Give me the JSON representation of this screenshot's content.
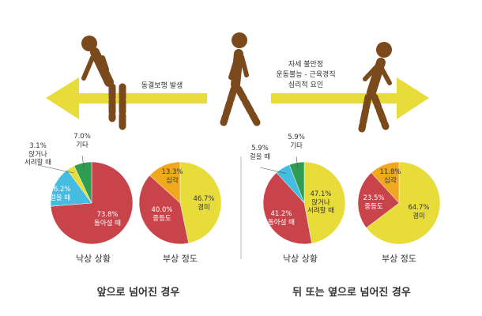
{
  "header": {
    "left_label": "동결보행 발생",
    "right_labels": [
      "자세 불안정",
      "운동불능 - 근육경직",
      "심리적 요인"
    ]
  },
  "colors": {
    "arrow": "#e8dc3a",
    "figure": "#7a4a1c",
    "red": "#c9444a",
    "blue": "#44bde0",
    "green": "#2e9d52",
    "yellow": "#e8dc3a",
    "orange": "#f0a81e",
    "divider": "#bbbbbb"
  },
  "icons": [
    "person-bent-forward-icon",
    "person-walking-icon",
    "person-leaning-back-icon",
    "arrow-left-icon",
    "arrow-right-icon"
  ],
  "sections": {
    "left_title": "앞으로 넘어진 경우",
    "right_title": "뒤 또는 옆으로 넘어진 경우"
  },
  "chart_data": [
    {
      "type": "pie",
      "title": "낙상 상황",
      "group": "앞으로 넘어진 경우",
      "slices": [
        {
          "pct": "73.8",
          "label": "돌아설 때",
          "value": 73.8,
          "color": "#c9444a"
        },
        {
          "pct": "16.2",
          "label": "걸을 때",
          "value": 16.2,
          "color": "#44bde0"
        },
        {
          "pct": "3.1",
          "label": "앉거나 서려할 때",
          "value": 3.1,
          "color": "#e8dc3a"
        },
        {
          "pct": "7.0",
          "label": "기타",
          "value": 7.0,
          "color": "#2e9d52"
        }
      ]
    },
    {
      "type": "pie",
      "title": "부상 정도",
      "group": "앞으로 넘어진 경우",
      "slices": [
        {
          "pct": "46.7",
          "label": "경미",
          "value": 46.7,
          "color": "#e8dc3a"
        },
        {
          "pct": "40.0",
          "label": "중등도",
          "value": 40.0,
          "color": "#c9444a"
        },
        {
          "pct": "13.3",
          "label": "심각",
          "value": 13.3,
          "color": "#f0a81e"
        }
      ]
    },
    {
      "type": "pie",
      "title": "낙상 상황",
      "group": "뒤 또는 옆으로 넘어진 경우",
      "slices": [
        {
          "pct": "47.1",
          "label": "앉거나 서려할 때",
          "value": 47.1,
          "color": "#e8dc3a"
        },
        {
          "pct": "41.2",
          "label": "돌아설 때",
          "value": 41.2,
          "color": "#c9444a"
        },
        {
          "pct": "5.9",
          "label": "걸을 때",
          "value": 5.9,
          "color": "#44bde0"
        },
        {
          "pct": "5.9",
          "label": "기타",
          "value": 5.9,
          "color": "#2e9d52"
        }
      ]
    },
    {
      "type": "pie",
      "title": "부상 정도",
      "group": "뒤 또는 옆으로 넘어진 경우",
      "slices": [
        {
          "pct": "64.7",
          "label": "경미",
          "value": 64.7,
          "color": "#e8dc3a"
        },
        {
          "pct": "23.5",
          "label": "중등도",
          "value": 23.5,
          "color": "#c9444a"
        },
        {
          "pct": "11.8",
          "label": "심각",
          "value": 11.8,
          "color": "#f0a81e"
        }
      ]
    }
  ]
}
